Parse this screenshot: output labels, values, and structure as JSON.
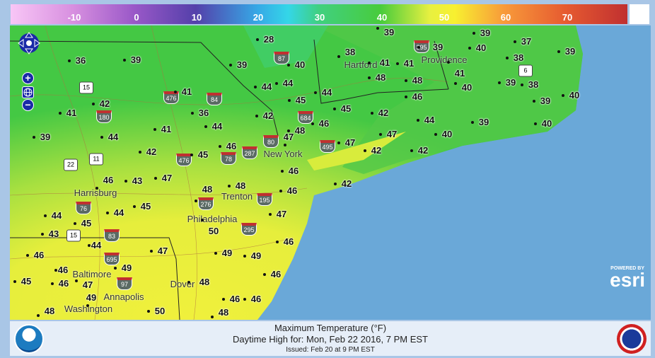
{
  "legend": {
    "ticks": [
      "-10",
      "0",
      "10",
      "20",
      "30",
      "40",
      "50",
      "60",
      "70"
    ],
    "unit": "°F"
  },
  "footer": {
    "title": "Maximum Temperature (°F)",
    "subtitle": "Daytime High for: Mon, Feb 22 2016,   7 PM EST",
    "issued": "Issued: Feb 20 at 9 PM EST"
  },
  "map": {
    "temperatures": [
      "39",
      "39",
      "37",
      "39",
      "28",
      "40",
      "38",
      "38",
      "41",
      "41",
      "39",
      "41",
      "36",
      "39",
      "39",
      "40",
      "48",
      "48",
      "40",
      "39",
      "38",
      "40",
      "44",
      "44",
      "44",
      "45",
      "46",
      "39",
      "41",
      "42",
      "41",
      "36",
      "42",
      "45",
      "42",
      "44",
      "39",
      "40",
      "44",
      "41",
      "48",
      "46",
      "40",
      "44",
      "39",
      "47",
      "46",
      "47",
      "47",
      "42",
      "45",
      "42",
      "42",
      "46",
      "47",
      "43",
      "48",
      "42",
      "46",
      "46",
      "44",
      "44",
      "45",
      "48",
      "47",
      "45",
      "43",
      "50",
      "44",
      "47",
      "46",
      "49",
      "49",
      "46",
      "46",
      "49",
      "46",
      "45",
      "46",
      "47",
      "48",
      "46",
      "46",
      "50",
      "49",
      "48",
      "48"
    ],
    "cities": [
      "Hartford",
      "Providence",
      "New York",
      "Trenton",
      "Philadelphia",
      "Harrisburg",
      "Baltimore",
      "Washington",
      "Annapolis",
      "Dover"
    ],
    "interstates": [
      "87",
      "84",
      "476",
      "684",
      "80",
      "287",
      "78",
      "476",
      "495",
      "195",
      "295",
      "276",
      "76",
      "83",
      "695",
      "97",
      "180",
      "395"
    ],
    "us_routes": [
      "15",
      "22",
      "11",
      "6",
      "15"
    ],
    "attribution": {
      "powered_by": "POWERED BY",
      "brand": "esri"
    },
    "controls": {
      "zoom_in": "+",
      "zoom_out": "−"
    },
    "colors": {
      "ocean": "#6aa8d8",
      "land_cool": "#44c844",
      "land_warm": "#eef040"
    }
  },
  "logos": {
    "left": "NOAA",
    "right": "National Weather Service"
  }
}
